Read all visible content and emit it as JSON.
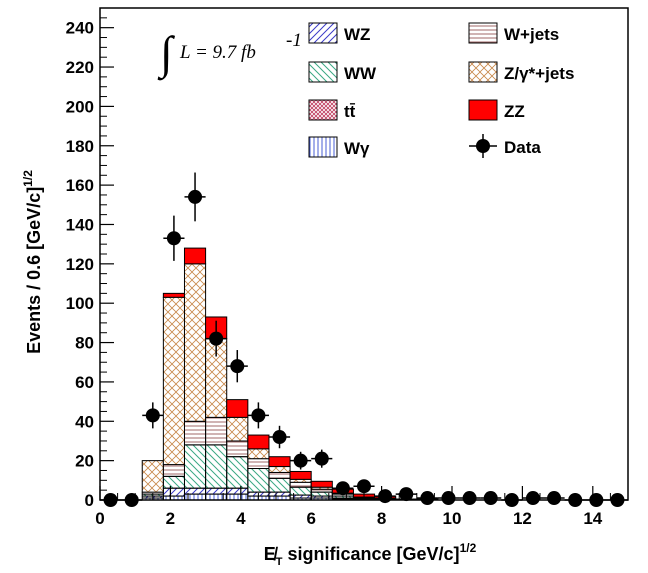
{
  "chart_data": {
    "type": "bar",
    "stacked": true,
    "xlabel": "E̸T significance [GeV/c]1/2",
    "xlabel_parts": {
      "main": "E̸",
      "sub": "T",
      "rest": " significance [GeV/c]",
      "sup": "1/2"
    },
    "ylabel_parts": {
      "main": "Events / 0.6 [GeV/c]",
      "sup": "1/2"
    },
    "xlim": [
      0,
      15
    ],
    "ylim": [
      0,
      250
    ],
    "bin_width": 0.6,
    "bin_edges_start": 0.6,
    "x_ticks": [
      "0",
      "2",
      "4",
      "6",
      "8",
      "10",
      "12",
      "14"
    ],
    "x_tick_values": [
      0,
      2,
      4,
      6,
      8,
      10,
      12,
      14
    ],
    "y_ticks": [
      "0",
      "20",
      "40",
      "60",
      "80",
      "100",
      "120",
      "140",
      "160",
      "180",
      "200",
      "220",
      "240"
    ],
    "y_tick_values": [
      0,
      20,
      40,
      60,
      80,
      100,
      120,
      140,
      160,
      180,
      200,
      220,
      240
    ],
    "annotation": {
      "integral": "∫",
      "text": "L = 9.7 fb",
      "sup": "-1"
    },
    "legend": [
      {
        "key": "WZ",
        "label": "WZ"
      },
      {
        "key": "WW",
        "label": "WW"
      },
      {
        "key": "tt",
        "label": "tt̄"
      },
      {
        "key": "Wg",
        "label": "Wγ"
      },
      {
        "key": "Wjets",
        "label": "W+jets"
      },
      {
        "key": "DY",
        "label": "Z/γ*+jets"
      },
      {
        "key": "ZZ",
        "label": "ZZ"
      },
      {
        "key": "data",
        "label": "Data"
      }
    ],
    "series": [
      {
        "name": "Wγ",
        "key": "Wg",
        "values": [
          0,
          1,
          2,
          3,
          3,
          3,
          2,
          2,
          1,
          1,
          0.5,
          0,
          0,
          0,
          0,
          0,
          0,
          0,
          0,
          0,
          0,
          0,
          0
        ]
      },
      {
        "name": "tt̄",
        "key": "tt",
        "values": [
          0,
          0,
          0,
          0,
          0,
          0,
          0,
          0,
          0,
          0,
          0,
          0,
          0,
          0,
          0,
          0,
          0,
          0,
          0,
          0,
          0,
          0,
          0
        ]
      },
      {
        "name": "WZ",
        "key": "WZ",
        "values": [
          0,
          1,
          4,
          3,
          3,
          3,
          2,
          2,
          1.5,
          1,
          0.5,
          0,
          0,
          0,
          0,
          0,
          0,
          0,
          0,
          0,
          0,
          0,
          0
        ]
      },
      {
        "name": "WW",
        "key": "WW",
        "values": [
          0,
          1,
          6,
          22,
          22,
          16,
          12,
          7,
          4,
          2,
          1,
          0.5,
          0,
          0,
          0,
          0,
          0,
          0,
          0,
          0,
          0,
          0,
          0
        ]
      },
      {
        "name": "W+jets",
        "key": "Wjets",
        "values": [
          0,
          1,
          6,
          12,
          14,
          8,
          5,
          3,
          2.5,
          1.5,
          1,
          0.5,
          0.5,
          0,
          0,
          0,
          0,
          0,
          0,
          0,
          0,
          0,
          0
        ]
      },
      {
        "name": "Z/γ*+jets",
        "key": "DY",
        "values": [
          0,
          16,
          85,
          80,
          40,
          12,
          5,
          3,
          1.5,
          1,
          0.5,
          0.5,
          0.5,
          0,
          0,
          0,
          0,
          0,
          0,
          0,
          0,
          0,
          0
        ]
      },
      {
        "name": "ZZ",
        "key": "ZZ",
        "values": [
          0,
          0,
          2,
          8,
          11,
          9,
          7,
          5,
          4,
          3,
          2,
          1.5,
          1,
          0.5,
          0.5,
          0,
          0,
          0,
          0,
          0,
          0,
          0,
          0
        ]
      }
    ],
    "data_points": {
      "name": "Data",
      "x": [
        0.3,
        0.9,
        1.5,
        2.1,
        2.7,
        3.3,
        3.9,
        4.5,
        5.1,
        5.7,
        6.3,
        6.9,
        7.5,
        8.1,
        8.7,
        9.3,
        9.9,
        10.5,
        11.1,
        11.7,
        12.3,
        12.9,
        13.5,
        14.1,
        14.7
      ],
      "y": [
        0,
        0,
        43,
        133,
        154,
        82,
        68,
        43,
        32,
        20,
        21,
        6,
        7,
        2,
        3,
        1,
        1,
        1,
        1,
        0,
        1,
        1,
        0,
        0,
        0
      ],
      "yerr": [
        0,
        0,
        6.6,
        11.5,
        12.4,
        9.1,
        8.2,
        6.6,
        5.7,
        4.5,
        4.6,
        2.4,
        2.6,
        1.4,
        1.7,
        1,
        1,
        1,
        1,
        0,
        1,
        1,
        0,
        0,
        0
      ]
    },
    "colors": {
      "ZZ": "#ff0000",
      "DY": "#c8884a",
      "Wjets": "#a06a6a",
      "WW": "#3aa884",
      "WZ": "#3b3bc8",
      "Wg": "#4a5fd6",
      "tt": "#c04060",
      "data": "#000000"
    }
  }
}
